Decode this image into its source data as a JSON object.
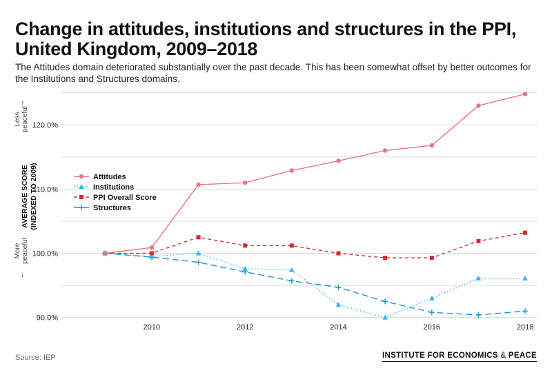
{
  "title": "Change in attitudes, institutions and structures in the PPI, United Kingdom, 2009–2018",
  "subtitle": "The Attitudes domain deteriorated substantially over the past decade. This has been somewhat offset by better outcomes for the Institutions and Structures domains.",
  "y_axis": {
    "label_line1": "AVERAGE SCORE",
    "label_line2": "(INDEXED TO 2009)",
    "less_peaceful_line1": "Less",
    "less_peaceful_line2": "peaceful",
    "more_peaceful_line1": "More",
    "more_peaceful_line2": "peaceful",
    "arrow_up": "↑",
    "arrow_down": "↓"
  },
  "source": "Source: IEP",
  "logo": {
    "text_main": "INSTITUTE FOR ECONOMICS",
    "amp": "&",
    "text_end": "PEACE"
  },
  "chart_data": {
    "type": "line",
    "x": [
      2009,
      2010,
      2011,
      2012,
      2013,
      2014,
      2015,
      2016,
      2017,
      2018
    ],
    "xticks": [
      2010,
      2012,
      2014,
      2016,
      2018
    ],
    "yticks": [
      90,
      100,
      110,
      120
    ],
    "ytick_labels": [
      "90.0%",
      "100.0%",
      "110.0%",
      "120.0%"
    ],
    "xlim": [
      2008.05,
      2018.25
    ],
    "ylim": [
      89,
      125.5
    ],
    "grid": true,
    "legend_position": "upper-left",
    "series": [
      {
        "name": "Attitudes",
        "color": "#e8757e",
        "marker": "circle",
        "dash": "solid",
        "values": [
          100,
          100.9,
          110.7,
          111.0,
          112.9,
          114.4,
          116.0,
          116.8,
          123.0,
          124.8
        ]
      },
      {
        "name": "Institutions",
        "color": "#37b5e6",
        "marker": "triangle",
        "dash": "dotted",
        "values": [
          100,
          99.5,
          100.0,
          97.6,
          97.4,
          92.0,
          90.0,
          93.0,
          96.1,
          96.1
        ]
      },
      {
        "name": "PPI Overall Score",
        "color": "#d52a35",
        "marker": "square",
        "dash": "dashed",
        "values": [
          100,
          100,
          102.5,
          101.2,
          101.2,
          100.0,
          99.3,
          99.3,
          101.9,
          103.2
        ]
      },
      {
        "name": "Structures",
        "color": "#1a96cf",
        "marker": "plus",
        "dash": "longdash",
        "values": [
          100,
          99.4,
          98.6,
          97.1,
          95.7,
          94.7,
          92.5,
          90.8,
          90.4,
          91.0
        ]
      }
    ]
  }
}
